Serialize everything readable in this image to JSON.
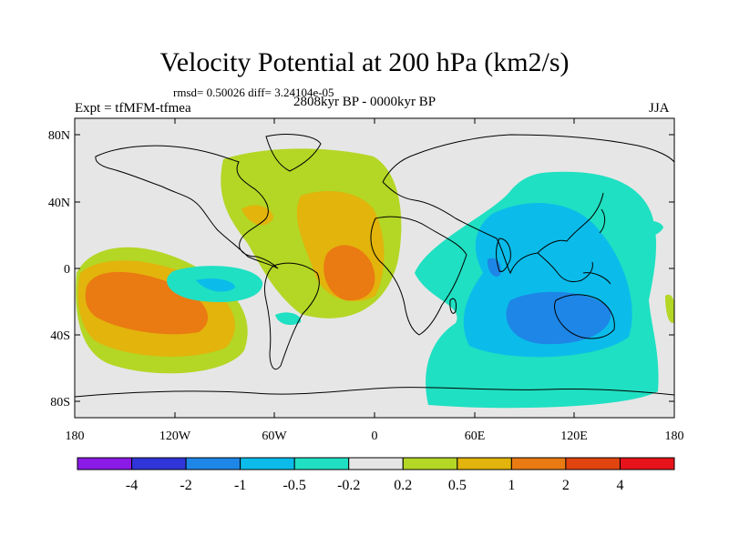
{
  "title": "Velocity Potential at 200 hPa (km2/s)",
  "stats_line": "rmsd= 0.50026 diff= 3.24104e-05",
  "experiment": "Expt = tfMFM-tfmea",
  "period": "2808kyr BP - 0000kyr BP",
  "season": "JJA",
  "axes": {
    "lat_ticks": [
      "80N",
      "40N",
      "0",
      "40S",
      "80S"
    ],
    "lon_ticks": [
      "180",
      "120W",
      "60W",
      "0",
      "60E",
      "120E",
      "180"
    ]
  },
  "colorbar": {
    "labels": [
      "-4",
      "-2",
      "-1",
      "-0.5",
      "-0.2",
      "0.2",
      "0.5",
      "1",
      "2",
      "4"
    ],
    "colors": [
      "#8a1ae6",
      "#2f35d8",
      "#1e86e6",
      "#0bbcea",
      "#1fe0c2",
      "#e6e6e6",
      "#b4d625",
      "#e2b40c",
      "#ea7a12",
      "#e2440f",
      "#e6131a"
    ]
  },
  "colors": {
    "ocean_land_background": "#e6e6e6",
    "coastline": "#000000"
  }
}
